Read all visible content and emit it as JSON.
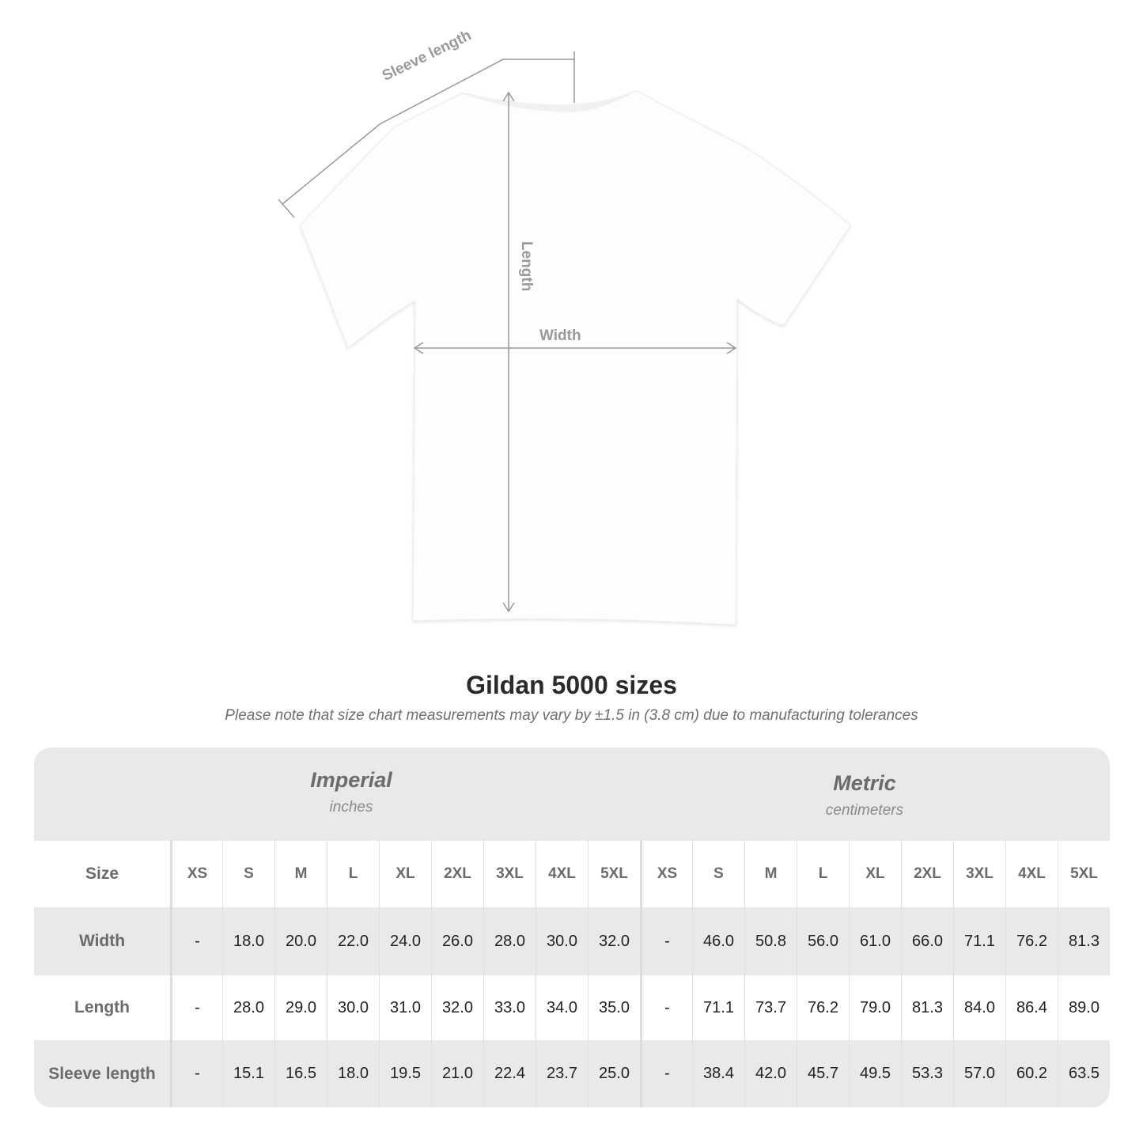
{
  "diagram": {
    "labels": {
      "sleeve": "Sleeve length",
      "length": "Length",
      "width": "Width"
    },
    "line_color": "#999999"
  },
  "title": "Gildan 5000 sizes",
  "note": "Please note that size chart measurements may vary by ±1.5 in (3.8 cm) due to manufacturing tolerances",
  "table": {
    "imperial": {
      "name": "Imperial",
      "unit": "inches"
    },
    "metric": {
      "name": "Metric",
      "unit": "centimeters"
    },
    "size_label": "Size",
    "sizes": [
      "XS",
      "S",
      "M",
      "L",
      "XL",
      "2XL",
      "3XL",
      "4XL",
      "5XL"
    ],
    "rows": [
      {
        "label": "Width",
        "imperial": [
          "-",
          "18.0",
          "20.0",
          "22.0",
          "24.0",
          "26.0",
          "28.0",
          "30.0",
          "32.0"
        ],
        "metric": [
          "-",
          "46.0",
          "50.8",
          "56.0",
          "61.0",
          "66.0",
          "71.1",
          "76.2",
          "81.3"
        ]
      },
      {
        "label": "Length",
        "imperial": [
          "-",
          "28.0",
          "29.0",
          "30.0",
          "31.0",
          "32.0",
          "33.0",
          "34.0",
          "35.0"
        ],
        "metric": [
          "-",
          "71.1",
          "73.7",
          "76.2",
          "79.0",
          "81.3",
          "84.0",
          "86.4",
          "89.0"
        ]
      },
      {
        "label": "Sleeve length",
        "imperial": [
          "-",
          "15.1",
          "16.5",
          "18.0",
          "19.5",
          "21.0",
          "22.4",
          "23.7",
          "25.0"
        ],
        "metric": [
          "-",
          "38.4",
          "42.0",
          "45.7",
          "49.5",
          "53.3",
          "57.0",
          "60.2",
          "63.5"
        ]
      }
    ]
  }
}
